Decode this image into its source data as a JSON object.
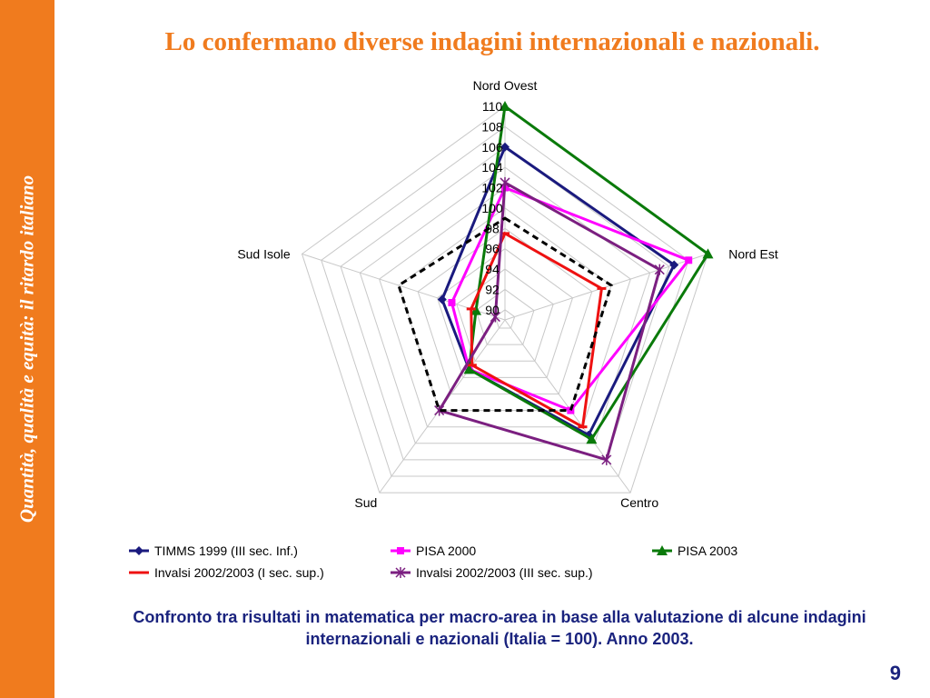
{
  "sidebar": {
    "text": "Quantità, qualità e equità: il ritardo italiano",
    "color": "#f07b1e"
  },
  "slide": {
    "title": "Lo confermano diverse indagini internazionali e nazionali.",
    "caption_line1": "Confronto tra risultati in matematica per macro-area in base alla valutazione di alcune indagini",
    "caption_line2": "internazionali e nazionali (Italia = 100). Anno 2003.",
    "page_number": "9"
  },
  "chart_data": {
    "type": "radar",
    "axes": [
      "Nord Ovest",
      "Nord Est",
      "Centro",
      "Sud",
      "Sud Isole"
    ],
    "rlim": [
      89,
      110
    ],
    "ticks": [
      90,
      92,
      94,
      96,
      98,
      100,
      102,
      104,
      106,
      108,
      110
    ],
    "grid": true,
    "legend_position": "bottom",
    "series": [
      {
        "name": "TIMMS 1999 (III sec. Inf.)",
        "values": [
          106,
          106.5,
          103,
          95,
          95.5
        ],
        "color": "#1a1a7e",
        "marker": "diamond",
        "dash": ""
      },
      {
        "name": "PISA 2000",
        "values": [
          102,
          108,
          100,
          95,
          94.5
        ],
        "color": "#ff00ff",
        "marker": "square",
        "dash": ""
      },
      {
        "name": "PISA 2003",
        "values": [
          110,
          110,
          103.5,
          95,
          92
        ],
        "color": "#0a7a0a",
        "marker": "triangle",
        "dash": ""
      },
      {
        "name": "Invalsi 2002/2003 (I sec. sup.)",
        "values": [
          97.5,
          99,
          102,
          94.5,
          92.5
        ],
        "color": "#ee1111",
        "marker": "dash",
        "dash": ""
      },
      {
        "name": "Invalsi 2002/2003 (III sec. sup.)",
        "values": [
          102.5,
          105,
          106,
          100,
          90
        ],
        "color": "#7b1f80",
        "marker": "star",
        "dash": ""
      },
      {
        "name": "",
        "values": [
          99,
          100,
          100,
          100,
          100
        ],
        "color": "#000000",
        "marker": "none",
        "dash": "7,5"
      }
    ]
  }
}
